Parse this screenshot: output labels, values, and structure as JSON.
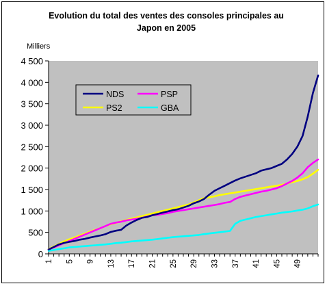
{
  "chart_data": {
    "type": "line",
    "title_line1": "Evolution du total des ventes des consoles principales au",
    "title_line2": "Japon en 2005",
    "unit_label": "Milliers",
    "ylim": [
      0,
      4500
    ],
    "y_ticks": [
      "0",
      "500",
      "1 000",
      "1 500",
      "2 000",
      "2 500",
      "3 000",
      "3 500",
      "4 000",
      "4 500"
    ],
    "y_tick_values": [
      0,
      500,
      1000,
      1500,
      2000,
      2500,
      3000,
      3500,
      4000,
      4500
    ],
    "x_ticks": [
      "1",
      "5",
      "9",
      "13",
      "17",
      "21",
      "25",
      "29",
      "33",
      "37",
      "41",
      "45",
      "49"
    ],
    "x_tick_values": [
      1,
      5,
      9,
      13,
      17,
      21,
      25,
      29,
      33,
      37,
      41,
      45,
      49
    ],
    "xlim": [
      1,
      53
    ],
    "grid": false,
    "legend_position": "top-left",
    "plot_background": "#c0c0c0",
    "x": [
      1,
      2,
      3,
      4,
      5,
      6,
      7,
      8,
      9,
      10,
      11,
      12,
      13,
      14,
      15,
      16,
      17,
      18,
      19,
      20,
      21,
      22,
      23,
      24,
      25,
      26,
      27,
      28,
      29,
      30,
      31,
      32,
      33,
      34,
      35,
      36,
      37,
      38,
      39,
      40,
      41,
      42,
      43,
      44,
      45,
      46,
      47,
      48,
      49,
      50,
      51,
      52,
      53
    ],
    "series": [
      {
        "name": "NDS",
        "color": "#000080",
        "values": [
          100,
          160,
          220,
          255,
          280,
          300,
          330,
          350,
          380,
          405,
          430,
          460,
          510,
          540,
          560,
          660,
          730,
          790,
          840,
          860,
          900,
          930,
          960,
          990,
          1020,
          1040,
          1080,
          1120,
          1180,
          1220,
          1280,
          1380,
          1470,
          1530,
          1590,
          1650,
          1710,
          1760,
          1800,
          1840,
          1880,
          1940,
          1970,
          2000,
          2050,
          2100,
          2200,
          2330,
          2500,
          2750,
          3200,
          3750,
          4160
        ]
      },
      {
        "name": "PSP",
        "color": "#ff00ff",
        "values": [
          100,
          150,
          200,
          250,
          300,
          350,
          400,
          450,
          500,
          550,
          600,
          650,
          700,
          730,
          750,
          780,
          800,
          820,
          840,
          870,
          900,
          910,
          930,
          950,
          980,
          1000,
          1020,
          1040,
          1060,
          1080,
          1100,
          1120,
          1140,
          1160,
          1190,
          1210,
          1280,
          1330,
          1360,
          1390,
          1420,
          1450,
          1470,
          1500,
          1530,
          1580,
          1640,
          1700,
          1780,
          1880,
          2020,
          2120,
          2200
        ]
      },
      {
        "name": "PS2",
        "color": "#ffff00",
        "values": [
          110,
          170,
          230,
          290,
          340,
          380,
          430,
          470,
          520,
          560,
          600,
          650,
          690,
          720,
          760,
          790,
          820,
          850,
          880,
          910,
          940,
          970,
          1000,
          1030,
          1060,
          1090,
          1120,
          1150,
          1200,
          1250,
          1300,
          1320,
          1340,
          1370,
          1390,
          1410,
          1430,
          1450,
          1470,
          1490,
          1510,
          1530,
          1550,
          1570,
          1590,
          1610,
          1640,
          1670,
          1700,
          1740,
          1790,
          1870,
          1960
        ]
      },
      {
        "name": "GBA",
        "color": "#00ffff",
        "values": [
          70,
          90,
          110,
          130,
          150,
          160,
          170,
          180,
          190,
          200,
          210,
          220,
          235,
          250,
          260,
          275,
          290,
          300,
          310,
          320,
          330,
          345,
          360,
          375,
          390,
          400,
          410,
          420,
          430,
          440,
          460,
          475,
          490,
          505,
          520,
          535,
          700,
          770,
          800,
          830,
          860,
          880,
          900,
          920,
          940,
          960,
          975,
          990,
          1010,
          1030,
          1060,
          1110,
          1150
        ]
      }
    ]
  }
}
